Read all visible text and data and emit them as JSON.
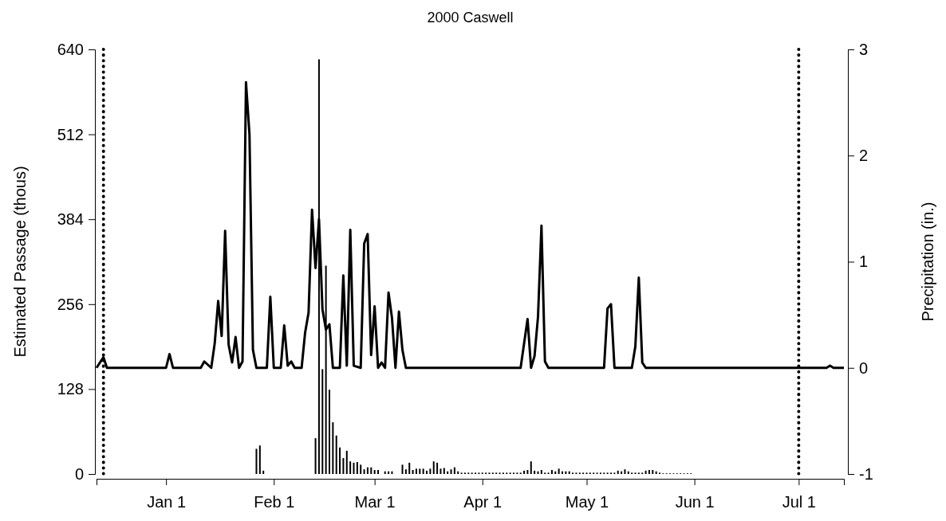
{
  "chart_data": {
    "type": "bar",
    "title": "2000 Caswell",
    "ylabel": "Estimated Passage (thous)",
    "y2label": "Precipitation (in.)",
    "xlim": [
      "1999-12-12",
      "2000-07-14"
    ],
    "xticks": [
      {
        "value": "1999-12-12",
        "label": null
      },
      {
        "value": "2000-01-01",
        "label": "Jan 1"
      },
      {
        "value": "2000-02-01",
        "label": "Feb 1"
      },
      {
        "value": "2000-03-01",
        "label": "Mar 1"
      },
      {
        "value": "2000-04-01",
        "label": "Apr 1"
      },
      {
        "value": "2000-05-01",
        "label": "May 1"
      },
      {
        "value": "2000-06-01",
        "label": "Jun 1"
      },
      {
        "value": "2000-07-01",
        "label": "Jul 1"
      }
    ],
    "ylim": [
      0,
      640
    ],
    "yticks": [
      0,
      128,
      256,
      384,
      512,
      640
    ],
    "y2lim": [
      -1,
      3
    ],
    "y2ticks": [
      -1,
      0,
      1,
      2,
      3
    ],
    "ref_lines": [
      {
        "axis": "x",
        "value": "1999-12-14",
        "color": "#000000",
        "line_style": "dotted"
      },
      {
        "axis": "x",
        "value": "2000-07-01",
        "color": "#000000",
        "line_style": "dotted"
      }
    ],
    "series": [
      {
        "color": "#000000",
        "x": [
          "2000-01-27",
          "2000-01-28",
          "2000-01-29",
          "2000-02-13",
          "2000-02-14",
          "2000-02-15",
          "2000-02-16",
          "2000-02-17",
          "2000-02-18",
          "2000-02-19",
          "2000-02-20",
          "2000-02-21",
          "2000-02-22",
          "2000-02-23",
          "2000-02-24",
          "2000-02-25",
          "2000-02-26",
          "2000-02-27",
          "2000-02-28",
          "2000-02-29",
          "2000-03-01",
          "2000-03-02",
          "2000-03-04",
          "2000-03-05",
          "2000-03-06",
          "2000-03-09",
          "2000-03-10",
          "2000-03-11",
          "2000-03-12",
          "2000-03-13",
          "2000-03-14",
          "2000-03-15",
          "2000-03-16",
          "2000-03-17",
          "2000-03-18",
          "2000-03-19",
          "2000-03-20",
          "2000-03-21",
          "2000-03-22",
          "2000-03-23",
          "2000-03-24",
          "2000-03-25",
          "2000-03-26",
          "2000-03-27",
          "2000-03-28",
          "2000-03-29",
          "2000-03-30",
          "2000-03-31",
          "2000-04-01",
          "2000-04-02",
          "2000-04-03",
          "2000-04-04",
          "2000-04-05",
          "2000-04-06",
          "2000-04-07",
          "2000-04-08",
          "2000-04-09",
          "2000-04-10",
          "2000-04-11",
          "2000-04-12",
          "2000-04-13",
          "2000-04-14",
          "2000-04-15",
          "2000-04-16",
          "2000-04-17",
          "2000-04-18",
          "2000-04-19",
          "2000-04-20",
          "2000-04-21",
          "2000-04-22",
          "2000-04-23",
          "2000-04-24",
          "2000-04-25",
          "2000-04-26",
          "2000-04-27",
          "2000-04-28",
          "2000-04-29",
          "2000-04-30",
          "2000-05-01",
          "2000-05-02",
          "2000-05-03",
          "2000-05-04",
          "2000-05-05",
          "2000-05-06",
          "2000-05-07",
          "2000-05-08",
          "2000-05-09",
          "2000-05-10",
          "2000-05-11",
          "2000-05-12",
          "2000-05-13",
          "2000-05-14",
          "2000-05-15",
          "2000-05-16",
          "2000-05-17",
          "2000-05-18",
          "2000-05-19",
          "2000-05-20",
          "2000-05-21",
          "2000-05-22",
          "2000-05-23",
          "2000-05-24",
          "2000-05-25",
          "2000-05-26",
          "2000-05-27",
          "2000-05-28",
          "2000-05-29",
          "2000-05-30",
          "2000-05-31"
        ],
        "values": [
          38,
          43,
          5,
          54,
          625,
          158,
          314,
          127,
          78,
          58,
          40,
          24,
          35,
          19,
          17,
          18,
          14,
          7,
          10,
          10,
          6,
          6,
          4,
          4,
          4,
          14,
          7,
          17,
          6,
          8,
          8,
          8,
          5,
          8,
          19,
          17,
          8,
          9,
          4,
          7,
          10,
          4,
          2,
          2,
          2,
          2,
          2,
          2,
          2,
          2,
          2,
          2,
          2,
          2,
          2,
          2,
          2,
          2,
          2,
          2,
          5,
          6,
          19,
          5,
          4,
          6,
          2,
          2,
          6,
          4,
          8,
          4,
          4,
          4,
          2,
          2,
          2,
          2,
          2,
          2,
          2,
          2,
          2,
          2,
          2,
          2,
          2,
          5,
          4,
          7,
          4,
          2,
          2,
          2,
          2,
          5,
          6,
          6,
          4,
          2,
          1,
          1,
          1,
          1,
          1,
          1,
          1,
          1,
          1
        ]
      },
      {
        "type": "line",
        "axis": "y2",
        "color": "#000000",
        "x": [
          "1999-12-12",
          "1999-12-14",
          "1999-12-15",
          "2000-01-01",
          "2000-01-02",
          "2000-01-03",
          "2000-01-11",
          "2000-01-12",
          "2000-01-14",
          "2000-01-15",
          "2000-01-16",
          "2000-01-17",
          "2000-01-18",
          "2000-01-19",
          "2000-01-20",
          "2000-01-21",
          "2000-01-22",
          "2000-01-23",
          "2000-01-24",
          "2000-01-25",
          "2000-01-26",
          "2000-01-27",
          "2000-01-30",
          "2000-01-31",
          "2000-02-01",
          "2000-02-03",
          "2000-02-04",
          "2000-02-05",
          "2000-02-06",
          "2000-02-07",
          "2000-02-09",
          "2000-02-10",
          "2000-02-11",
          "2000-02-12",
          "2000-02-13",
          "2000-02-14",
          "2000-02-15",
          "2000-02-16",
          "2000-02-17",
          "2000-02-18",
          "2000-02-20",
          "2000-02-21",
          "2000-02-22",
          "2000-02-23",
          "2000-02-24",
          "2000-02-26",
          "2000-02-27",
          "2000-02-28",
          "2000-02-29",
          "2000-03-01",
          "2000-03-02",
          "2000-03-03",
          "2000-03-04",
          "2000-03-05",
          "2000-03-06",
          "2000-03-07",
          "2000-03-08",
          "2000-03-09",
          "2000-03-10",
          "2000-04-12",
          "2000-04-14",
          "2000-04-15",
          "2000-04-16",
          "2000-04-17",
          "2000-04-18",
          "2000-04-19",
          "2000-04-20",
          "2000-05-06",
          "2000-05-07",
          "2000-05-08",
          "2000-05-09",
          "2000-05-14",
          "2000-05-15",
          "2000-05-16",
          "2000-05-17",
          "2000-05-18",
          "2000-07-09",
          "2000-07-10",
          "2000-07-11",
          "2000-07-14"
        ],
        "values": [
          0,
          0.1,
          0,
          0,
          0.13,
          0,
          0,
          0.06,
          0,
          0.23,
          0.63,
          0.3,
          1.29,
          0.22,
          0.05,
          0.29,
          0,
          0.06,
          2.69,
          2.2,
          0.17,
          0,
          0,
          0.67,
          0,
          0,
          0.4,
          0.02,
          0.06,
          0,
          0,
          0.33,
          0.52,
          1.49,
          0.94,
          1.4,
          0.55,
          0.36,
          0.41,
          0,
          0,
          0.87,
          0.02,
          1.3,
          0.02,
          0,
          1.17,
          1.26,
          0.12,
          0.58,
          0,
          0.05,
          0,
          0.71,
          0.47,
          0,
          0.53,
          0.17,
          0,
          0,
          0.46,
          0,
          0.11,
          0.48,
          1.34,
          0.06,
          0,
          0,
          0.56,
          0.6,
          0,
          0,
          0.2,
          0.85,
          0.05,
          0,
          0,
          0.02,
          0,
          0
        ]
      }
    ]
  }
}
